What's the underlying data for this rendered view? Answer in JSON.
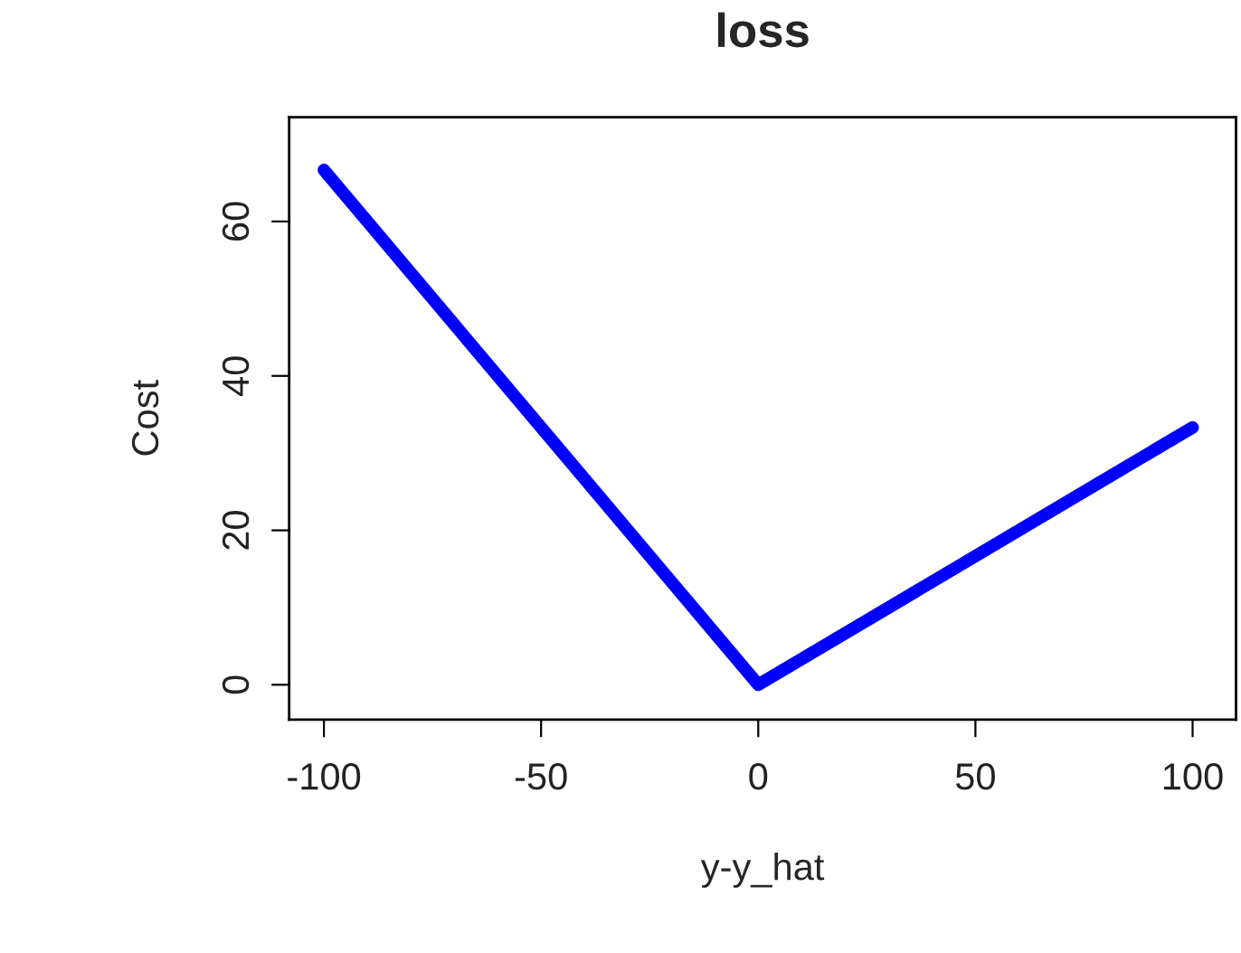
{
  "chart_data": {
    "type": "line",
    "title": "loss",
    "xlabel": "y-y_hat",
    "ylabel": "Cost",
    "x": [
      -100,
      0,
      100
    ],
    "series": [
      {
        "color": "#0000ff",
        "values": [
          66.67,
          0,
          33.33
        ]
      }
    ],
    "xlim": [
      -108,
      110
    ],
    "xticks": [
      -100,
      -50,
      0,
      50,
      100
    ],
    "ylim": [
      -4.5,
      73.5
    ],
    "yticks": [
      0,
      20,
      40,
      60
    ],
    "grid": false,
    "legend": false,
    "marker": "none",
    "line_style": "solid"
  }
}
